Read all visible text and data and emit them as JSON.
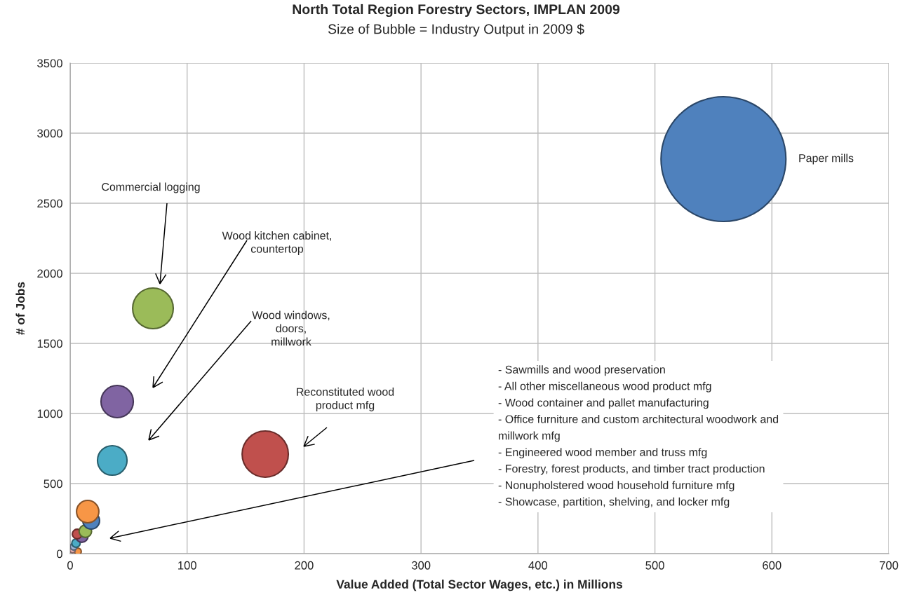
{
  "chart_data": {
    "type": "bubble",
    "title": "North Total Region Forestry Sectors, IMPLAN 2009",
    "subtitle": "Size of Bubble = Industry Output in 2009 $",
    "xlabel": "Value Added (Total Sector Wages, etc.) in Millions",
    "ylabel": "# of Jobs",
    "x": [
      558.6,
      166.8,
      70.8,
      40.2,
      36,
      15,
      18,
      13,
      6,
      10,
      5,
      3,
      2,
      6.6
    ],
    "values": [
      2815,
      710,
      1750,
      1085,
      665,
      300,
      235,
      160,
      140,
      125,
      75,
      50,
      25,
      15
    ],
    "sizes": [
      1,
      0.137,
      0.106,
      0.067,
      0.056,
      0.032,
      0.018,
      0.01,
      0.006,
      0.01,
      0.0045,
      0.003,
      0.002,
      0.003
    ],
    "colors": [
      "#4f81bd",
      "#c0504d",
      "#9bbb59",
      "#8064a2",
      "#4bacc6",
      "#f79646",
      "#4f81bd",
      "#9bbb59",
      "#c0504d",
      "#8064a2",
      "#4bacc6",
      "#9fb5d6",
      "#e6b0b0",
      "#f79646"
    ],
    "annotations": [
      "Paper mills",
      "Commercial logging",
      "Wood kitchen cabinet,\ncountertop",
      "Wood windows,\ndoors,\nmillwork",
      "Reconstituted wood\nproduct mfg",
      "- Sawmills and wood preservation\n- All other miscellaneous wood product mfg\n- Wood container and pallet manufacturing\n- Office furniture and custom architectural woodwork and\nmillwork mfg\n- Engineered wood member and truss mfg\n- Forestry, forest products, and timber tract production\n- Nonupholstered wood household furniture mfg\n- Showcase, partition, shelving, and locker mfg"
    ],
    "xlim": [
      0,
      700
    ],
    "xticks": [
      0,
      100,
      200,
      300,
      400,
      500,
      600,
      700
    ],
    "ylim": [
      0,
      3500
    ],
    "yticks": [
      0,
      500,
      1000,
      1500,
      2000,
      2500,
      3000,
      3500
    ],
    "grid": true
  }
}
